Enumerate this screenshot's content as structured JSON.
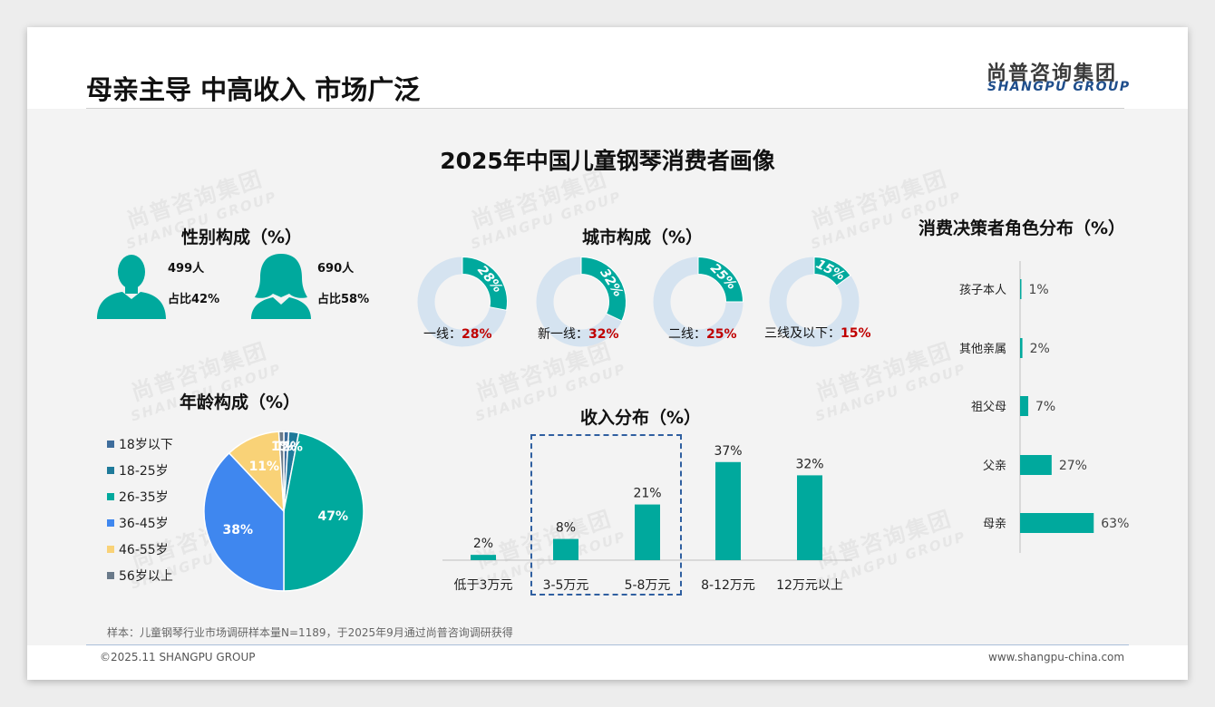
{
  "title": "母亲主导 中高收入 市场广泛",
  "logo": {
    "cn": "尚普咨询集团",
    "en": "SHANGPU GROUP"
  },
  "main_heading": "2025年中国儿童钢琴消费者画像",
  "watermark": {
    "cn": "尚普咨询集团",
    "en": "SHANGPU GROUP"
  },
  "gender": {
    "title": "性别构成（%）",
    "male": {
      "count": "499人",
      "share": "占比42%"
    },
    "female": {
      "count": "690人",
      "share": "占比58%"
    }
  },
  "city": {
    "title": "城市构成（%）",
    "items": [
      {
        "name": "一线：",
        "value": 28,
        "pct": "28%",
        "ring_label": "28%"
      },
      {
        "name": "新一线：",
        "value": 32,
        "pct": "32%",
        "ring_label": "32%"
      },
      {
        "name": "二线：",
        "value": 25,
        "pct": "25%",
        "ring_label": "25%"
      },
      {
        "name": "三线及以下：",
        "value": 15,
        "pct": "15%",
        "ring_label": "15%"
      }
    ]
  },
  "colors": {
    "teal": "#00a99d",
    "ring_bg": "#d5e3f0",
    "accent_red": "#c00000",
    "box_border": "#2f5fa0"
  },
  "chart_data": [
    {
      "type": "pie",
      "title": "年龄构成（%）",
      "categories": [
        "18岁以下",
        "18-25岁",
        "26-35岁",
        "36-45岁",
        "46-55岁",
        "56岁以上"
      ],
      "values": [
        1,
        2,
        47,
        38,
        11,
        1
      ],
      "labels": [
        "1%",
        "2%",
        "47%",
        "38%",
        "11%",
        "1%"
      ],
      "colors": [
        "#3e6d9c",
        "#1e7a9a",
        "#00a99d",
        "#3f87ef",
        "#f9d277",
        "#6a7a8a"
      ],
      "legend": "left"
    },
    {
      "type": "bar",
      "title": "收入分布（%）",
      "categories": [
        "低于3万元",
        "3-5万元",
        "5-8万元",
        "8-12万元",
        "12万元以上"
      ],
      "values": [
        2,
        8,
        21,
        37,
        32
      ],
      "labels": [
        "2%",
        "8%",
        "21%",
        "37%",
        "32%"
      ],
      "ylim": [
        0,
        40
      ],
      "color": "#00a99d"
    },
    {
      "type": "bar",
      "orientation": "horizontal",
      "title": "消费决策者角色分布（%）",
      "categories": [
        "孩子本人",
        "其他亲属",
        "祖父母",
        "父亲",
        "母亲"
      ],
      "values": [
        1,
        2,
        7,
        27,
        63
      ],
      "labels": [
        "1%",
        "2%",
        "7%",
        "27%",
        "63%"
      ],
      "xlim": [
        0,
        100
      ],
      "color": "#00a99d"
    }
  ],
  "footnote": "样本：儿童钢琴行业市场调研样本量N=1189，于2025年9月通过尚普咨询调研获得",
  "footer": {
    "copyright": "©2025.11 SHANGPU GROUP",
    "website": "www.shangpu-china.com"
  }
}
